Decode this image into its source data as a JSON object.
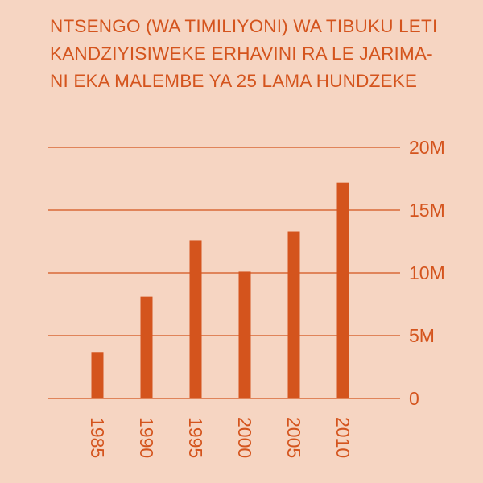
{
  "chart_data": {
    "type": "bar",
    "title_lines": [
      "NTSENGO (WA TIMILIYONI) WA TIBUKU LETI",
      "KANDZIYISIWEKE ERHAVINI RA LE JARIMA-",
      "NI EKA MALEMBE YA 25 LAMA HUNDZEKE"
    ],
    "categories": [
      "1985",
      "1990",
      "1995",
      "2000",
      "2005",
      "2010"
    ],
    "values": [
      3.7,
      8.1,
      12.6,
      10.1,
      13.3,
      17.2
    ],
    "ylim": [
      0,
      20
    ],
    "yticks": [
      0,
      5,
      10,
      15,
      20
    ],
    "ytick_labels": [
      "0",
      "5M",
      "10M",
      "15M",
      "20M"
    ],
    "xlabel": "",
    "ylabel": "",
    "grid": true,
    "axis_position": "right",
    "colors": {
      "bar": "#d4541d",
      "grid": "#d4541d",
      "text": "#d4541d",
      "background": "#f6d5c2"
    }
  }
}
